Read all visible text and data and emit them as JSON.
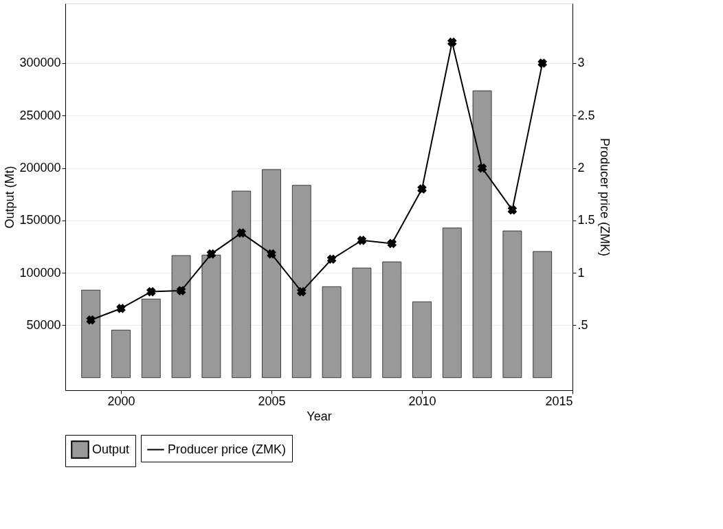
{
  "chart_data": {
    "type": "bar",
    "xlabel": "Year",
    "ylabel": "Output (Mt)",
    "y2label": "Producer price (ZMK)",
    "x": [
      1999,
      2000,
      2001,
      2002,
      2003,
      2004,
      2005,
      2006,
      2007,
      2008,
      2009,
      2010,
      2011,
      2012,
      2013,
      2014
    ],
    "series": [
      {
        "name": "Output",
        "color": "#999999",
        "values": [
          83500,
          45400,
          75000,
          116500,
          117000,
          178000,
          198500,
          183500,
          86800,
          104600,
          110500,
          72400,
          142800,
          273700,
          140000,
          120400
        ]
      },
      {
        "name": "Producer price (ZMK)",
        "type": "line",
        "axis": "y2",
        "color": "#000000",
        "marker": "cross",
        "line_style": "solid",
        "values": [
          0.55,
          0.66,
          0.82,
          0.83,
          1.18,
          1.38,
          1.18,
          0.82,
          1.13,
          1.31,
          1.28,
          1.8,
          3.2,
          2.0,
          1.6,
          3.0
        ]
      }
    ],
    "xlim": [
      1998.15,
      2015
    ],
    "xticks": [
      2000,
      2005,
      2010,
      2015
    ],
    "ylim": [
      -12000,
      357000
    ],
    "yticks": [
      50000,
      100000,
      150000,
      200000,
      250000,
      300000
    ],
    "y2lim": [
      -0.12,
      3.57
    ],
    "y2ticks": [
      {
        "value": 0.5,
        "label": ".5"
      },
      1,
      1.5,
      2,
      2.5,
      3
    ],
    "grid": "y",
    "legend": "bottom"
  }
}
